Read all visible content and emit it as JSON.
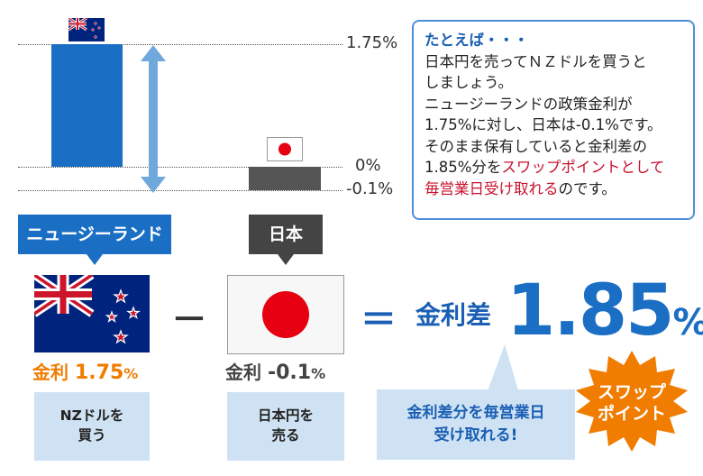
{
  "axis": {
    "label_top": "1.75%",
    "label_zero": "0%",
    "label_bottom": "-0.1%"
  },
  "note": {
    "heading": "たとえば・・・",
    "line1": "日本円を売ってＮＺドルを買うと",
    "line2": "しましょう。",
    "line3": "ニュージーランドの政策金利が",
    "line4": "1.75%に対し、日本は-0.1%です。",
    "line5": "そのまま保有していると金利差の",
    "line6_a": "1.85%分を",
    "line6_b": "スワップポイントとして",
    "line7_a": "毎営業日受け取れる",
    "line7_b": "のです。"
  },
  "nz": {
    "tag": "ニュージーランド",
    "rate_label": "金利",
    "rate_value": "1.75",
    "rate_unit": "%",
    "action_line1": "NZドルを",
    "action_line2": "買う"
  },
  "jp": {
    "tag": "日本",
    "rate_label": "金利",
    "rate_value": "-0.1",
    "rate_unit": "%",
    "action_line1": "日本円を",
    "action_line2": "売る"
  },
  "operators": {
    "minus": "－",
    "equals": "＝"
  },
  "result": {
    "label": "金利差",
    "value": "1.85",
    "unit": "%",
    "callout_line1": "金利差分を毎営業日",
    "callout_line2": "受け取れる!",
    "badge_line1": "スワップ",
    "badge_line2": "ポイント"
  },
  "colors": {
    "nz_blue": "#1a6fc4",
    "jp_gray": "#555555",
    "accent_orange": "#f07c00",
    "accent_red": "#c8102e"
  }
}
